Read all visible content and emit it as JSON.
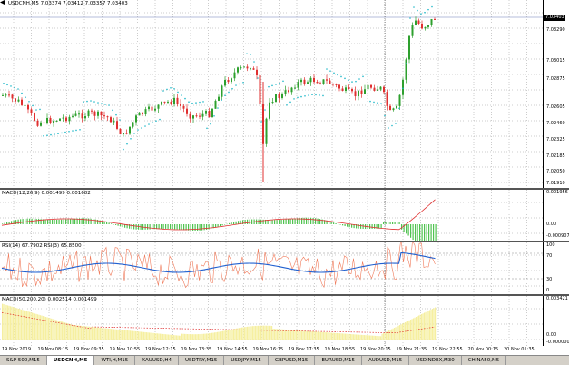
{
  "main": {
    "symbol_label": "USDCNH,M5  7.03374 7.03412 7.03357 7.03403",
    "price_box": "7.03403",
    "price_ticks": [
      "7.03290",
      "7.03015",
      "7.02875",
      "7.02605",
      "7.02460",
      "7.02325",
      "7.02185",
      "7.02050",
      "7.01910"
    ]
  },
  "macd1": {
    "label": "MACD(12,26,9) 0.001499 0.001682",
    "ticks": [
      "0.001956",
      "0.00",
      "-0.000907"
    ]
  },
  "rsi": {
    "label": "RSI(14) 67.7902  RSI(3) 65.8500",
    "ticks": [
      "100",
      "70",
      "30",
      "0"
    ]
  },
  "macd2": {
    "label": "MACD(50,200,20) 0.002514 0.001499",
    "ticks": [
      "0.003421",
      "0.00",
      "-0.000000"
    ]
  },
  "time_labels": [
    "19 Nov 2019",
    "19 Nov 08:15",
    "19 Nov 09:35",
    "19 Nov 10:55",
    "19 Nov 12:15",
    "19 Nov 13:35",
    "19 Nov 14:55",
    "19 Nov 16:15",
    "19 Nov 17:35",
    "19 Nov 18:55",
    "19 Nov 20:15",
    "19 Nov 21:35",
    "19 Nov 22:55",
    "20 Nov 00:15",
    "20 Nov 01:35"
  ],
  "tabs": [
    "S&P 500,M15",
    "USDCNH,M5",
    "WTI,H,M15",
    "XAUUSD,H4",
    "USDTRY,M15",
    "USDJPY,M15",
    "GBPUSD,M15",
    "EURUSD,M15",
    "AUDUSD,M15",
    "USDINDEX,M30",
    "CHINA50,M5"
  ],
  "active_tab": "USDCNH,M5"
}
